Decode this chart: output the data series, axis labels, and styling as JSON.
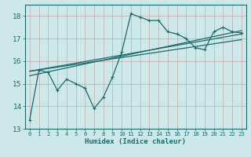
{
  "xlabel": "Humidex (Indice chaleur)",
  "bg_color": "#cce8e8",
  "grid_color": "#b8d8d8",
  "line_color": "#1a6b6b",
  "ylim": [
    13,
    18.5
  ],
  "xlim": [
    -0.5,
    23.5
  ],
  "yticks": [
    13,
    14,
    15,
    16,
    17,
    18
  ],
  "xticks": [
    0,
    1,
    2,
    3,
    4,
    5,
    6,
    7,
    8,
    9,
    10,
    11,
    12,
    13,
    14,
    15,
    16,
    17,
    18,
    19,
    20,
    21,
    22,
    23
  ],
  "line1_x": [
    0,
    1,
    2,
    3,
    4,
    5,
    6,
    7,
    8,
    9,
    10,
    11,
    12,
    13,
    14,
    15,
    16,
    17,
    18,
    19,
    20,
    21,
    22,
    23
  ],
  "line1_y": [
    13.4,
    15.6,
    15.5,
    14.7,
    15.2,
    15.0,
    14.8,
    13.9,
    14.4,
    15.3,
    16.4,
    18.1,
    17.95,
    17.8,
    17.8,
    17.3,
    17.2,
    17.0,
    16.6,
    16.5,
    17.3,
    17.5,
    17.3,
    17.25
  ],
  "line2_x": [
    0,
    23
  ],
  "line2_y": [
    15.55,
    17.2
  ],
  "line3_x": [
    0,
    23
  ],
  "line3_y": [
    15.55,
    16.95
  ],
  "line4_x": [
    0,
    23
  ],
  "line4_y": [
    15.35,
    17.35
  ]
}
